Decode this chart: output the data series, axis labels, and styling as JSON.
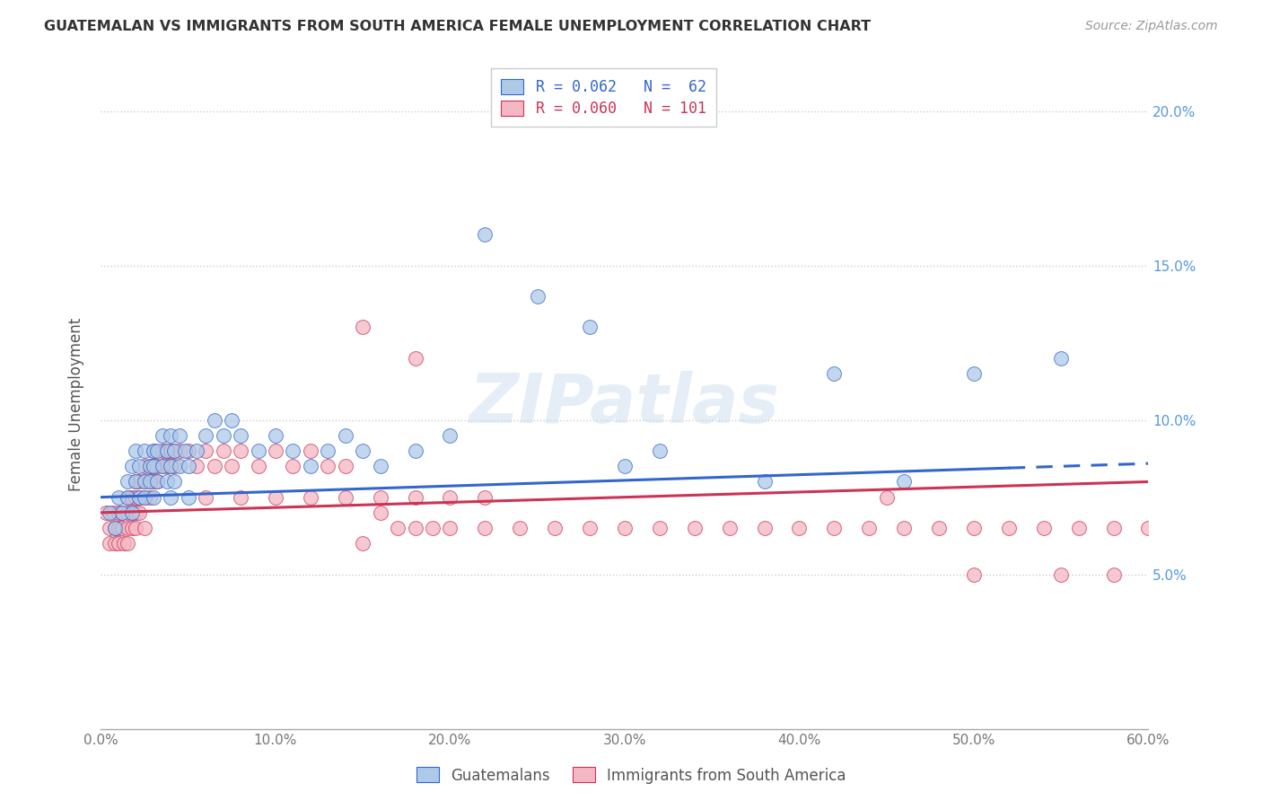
{
  "title": "GUATEMALAN VS IMMIGRANTS FROM SOUTH AMERICA FEMALE UNEMPLOYMENT CORRELATION CHART",
  "source": "Source: ZipAtlas.com",
  "ylabel": "Female Unemployment",
  "legend_blue_label": "R = 0.062   N =  62",
  "legend_pink_label": "R = 0.060   N = 101",
  "blue_color": "#aec9e8",
  "pink_color": "#f4b8c4",
  "trendline_blue": "#3366cc",
  "trendline_pink": "#cc3355",
  "watermark": "ZIPatlas",
  "xlim": [
    0.0,
    0.6
  ],
  "ylim": [
    0.0,
    0.21
  ],
  "xticks": [
    0.0,
    0.1,
    0.2,
    0.3,
    0.4,
    0.5,
    0.6
  ],
  "xtick_labels": [
    "0.0%",
    "10.0%",
    "20.0%",
    "30.0%",
    "40.0%",
    "50.0%",
    "60.0%"
  ],
  "yticks": [
    0.05,
    0.1,
    0.15,
    0.2
  ],
  "ytick_labels": [
    "5.0%",
    "10.0%",
    "15.0%",
    "20.0%"
  ],
  "legend_label_blue": "Guatemalans",
  "legend_label_pink": "Immigrants from South America",
  "blue_scatter_x": [
    0.005,
    0.008,
    0.01,
    0.012,
    0.015,
    0.015,
    0.018,
    0.018,
    0.02,
    0.02,
    0.022,
    0.022,
    0.025,
    0.025,
    0.025,
    0.028,
    0.028,
    0.03,
    0.03,
    0.03,
    0.032,
    0.032,
    0.035,
    0.035,
    0.038,
    0.038,
    0.04,
    0.04,
    0.04,
    0.042,
    0.042,
    0.045,
    0.045,
    0.048,
    0.05,
    0.05,
    0.055,
    0.06,
    0.065,
    0.07,
    0.075,
    0.08,
    0.09,
    0.1,
    0.11,
    0.12,
    0.13,
    0.14,
    0.15,
    0.16,
    0.18,
    0.2,
    0.22,
    0.25,
    0.28,
    0.3,
    0.32,
    0.38,
    0.42,
    0.46,
    0.5,
    0.55
  ],
  "blue_scatter_y": [
    0.07,
    0.065,
    0.075,
    0.07,
    0.08,
    0.075,
    0.085,
    0.07,
    0.09,
    0.08,
    0.085,
    0.075,
    0.09,
    0.08,
    0.075,
    0.085,
    0.08,
    0.09,
    0.085,
    0.075,
    0.09,
    0.08,
    0.095,
    0.085,
    0.09,
    0.08,
    0.095,
    0.085,
    0.075,
    0.09,
    0.08,
    0.095,
    0.085,
    0.09,
    0.085,
    0.075,
    0.09,
    0.095,
    0.1,
    0.095,
    0.1,
    0.095,
    0.09,
    0.095,
    0.09,
    0.085,
    0.09,
    0.095,
    0.09,
    0.085,
    0.09,
    0.095,
    0.16,
    0.14,
    0.13,
    0.085,
    0.09,
    0.08,
    0.115,
    0.08,
    0.115,
    0.12
  ],
  "pink_scatter_x": [
    0.003,
    0.005,
    0.005,
    0.007,
    0.008,
    0.008,
    0.01,
    0.01,
    0.01,
    0.012,
    0.012,
    0.013,
    0.015,
    0.015,
    0.015,
    0.015,
    0.018,
    0.018,
    0.018,
    0.02,
    0.02,
    0.02,
    0.02,
    0.022,
    0.022,
    0.022,
    0.025,
    0.025,
    0.025,
    0.025,
    0.028,
    0.028,
    0.028,
    0.03,
    0.03,
    0.03,
    0.032,
    0.032,
    0.035,
    0.035,
    0.038,
    0.038,
    0.04,
    0.04,
    0.042,
    0.042,
    0.045,
    0.05,
    0.055,
    0.06,
    0.065,
    0.07,
    0.075,
    0.08,
    0.09,
    0.1,
    0.11,
    0.12,
    0.13,
    0.14,
    0.15,
    0.16,
    0.17,
    0.18,
    0.19,
    0.2,
    0.22,
    0.24,
    0.26,
    0.28,
    0.3,
    0.32,
    0.34,
    0.36,
    0.38,
    0.4,
    0.42,
    0.44,
    0.46,
    0.48,
    0.5,
    0.52,
    0.54,
    0.56,
    0.58,
    0.6,
    0.15,
    0.18,
    0.06,
    0.08,
    0.1,
    0.12,
    0.14,
    0.16,
    0.18,
    0.2,
    0.22,
    0.45,
    0.5,
    0.55,
    0.58
  ],
  "pink_scatter_y": [
    0.07,
    0.065,
    0.06,
    0.07,
    0.065,
    0.06,
    0.07,
    0.065,
    0.06,
    0.07,
    0.065,
    0.06,
    0.075,
    0.07,
    0.065,
    0.06,
    0.075,
    0.07,
    0.065,
    0.08,
    0.075,
    0.07,
    0.065,
    0.08,
    0.075,
    0.07,
    0.085,
    0.08,
    0.075,
    0.065,
    0.085,
    0.08,
    0.075,
    0.09,
    0.085,
    0.08,
    0.085,
    0.08,
    0.09,
    0.085,
    0.09,
    0.085,
    0.09,
    0.085,
    0.09,
    0.085,
    0.09,
    0.09,
    0.085,
    0.09,
    0.085,
    0.09,
    0.085,
    0.09,
    0.085,
    0.09,
    0.085,
    0.09,
    0.085,
    0.085,
    0.06,
    0.07,
    0.065,
    0.065,
    0.065,
    0.065,
    0.065,
    0.065,
    0.065,
    0.065,
    0.065,
    0.065,
    0.065,
    0.065,
    0.065,
    0.065,
    0.065,
    0.065,
    0.065,
    0.065,
    0.065,
    0.065,
    0.065,
    0.065,
    0.065,
    0.065,
    0.13,
    0.12,
    0.075,
    0.075,
    0.075,
    0.075,
    0.075,
    0.075,
    0.075,
    0.075,
    0.075,
    0.075,
    0.05,
    0.05,
    0.05
  ]
}
